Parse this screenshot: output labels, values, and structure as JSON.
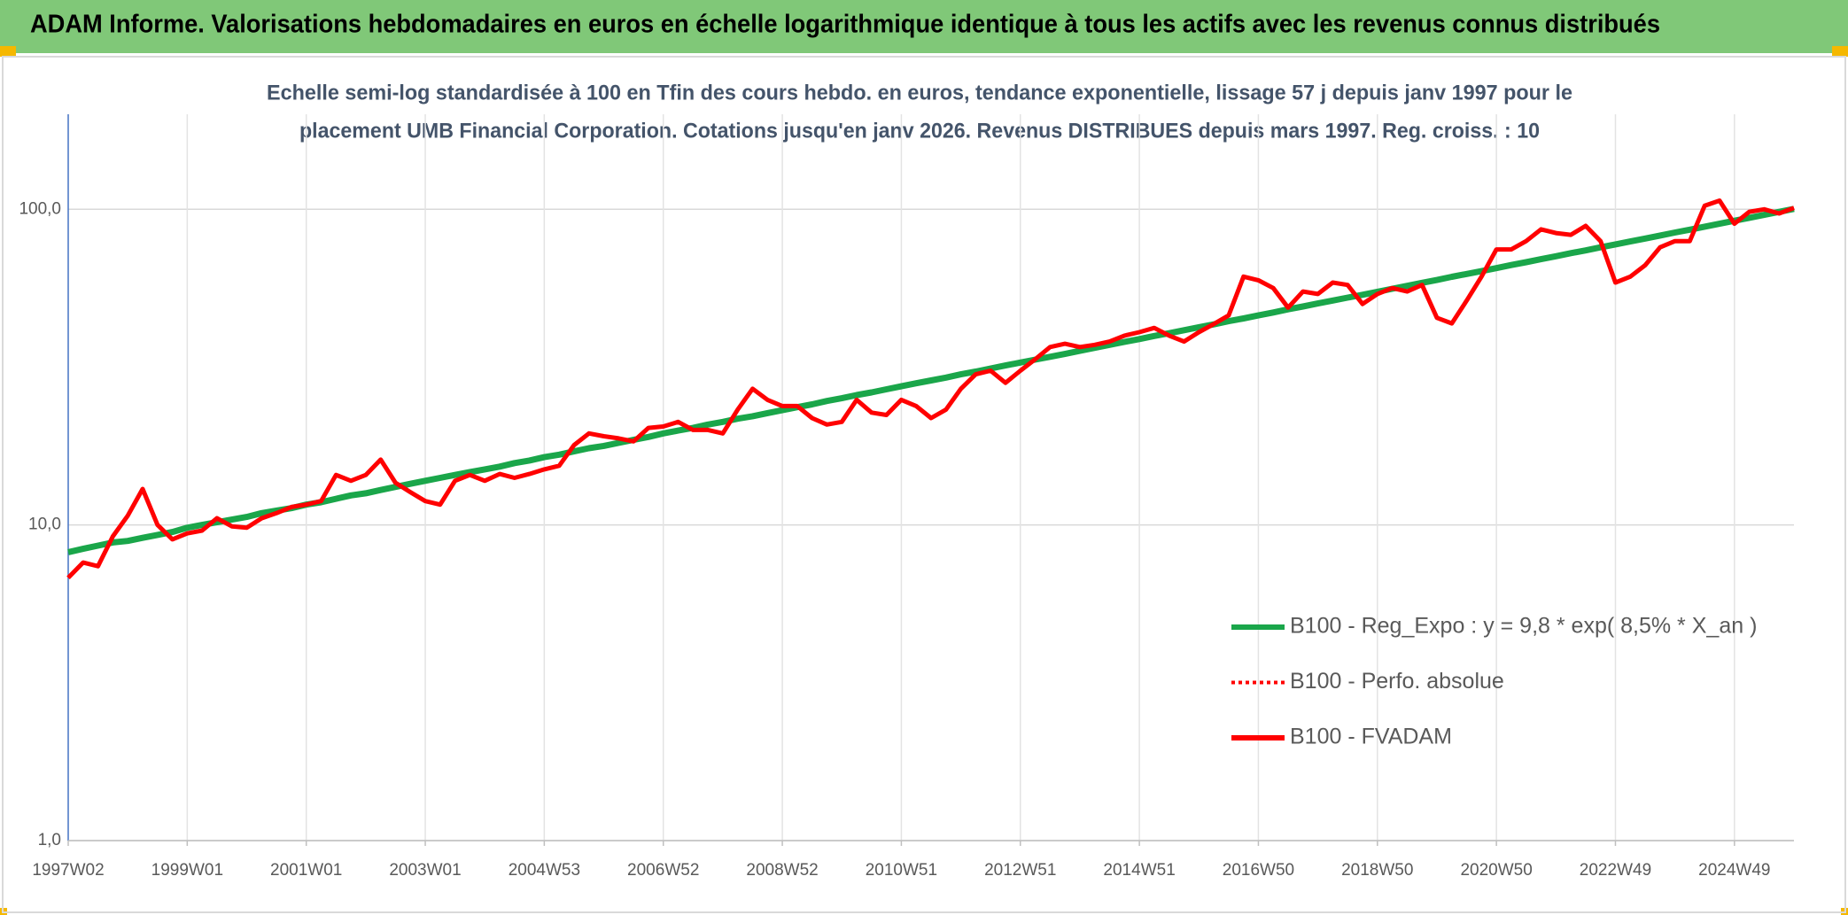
{
  "chart_data": {
    "type": "line",
    "header": "ADAM Informe. Valorisations hebdomadaires en euros en échelle logarithmique identique à tous les actifs avec les revenus connus distribués",
    "title": [
      "Echelle semi-log standardisée à 100 en Tfin des cours hebdo. en euros, tendance exponentielle, lissage 57 j depuis janv 1997 pour le",
      "placement UMB Financial Corporation. Cotations jusqu'en janv 2026. Revenus DISTRIBUES depuis mars 1997. Reg. croiss. : 10"
    ],
    "categories": [
      "1997W02",
      null,
      null,
      null,
      null,
      null,
      null,
      null,
      "1999W01",
      null,
      null,
      null,
      null,
      null,
      null,
      null,
      "2001W01",
      null,
      null,
      null,
      null,
      null,
      null,
      null,
      "2003W01",
      null,
      null,
      null,
      null,
      null,
      null,
      null,
      "2004W53",
      null,
      null,
      null,
      null,
      null,
      null,
      null,
      "2006W52",
      null,
      null,
      null,
      null,
      null,
      null,
      null,
      "2008W52",
      null,
      null,
      null,
      null,
      null,
      null,
      null,
      "2010W51",
      null,
      null,
      null,
      null,
      null,
      null,
      null,
      "2012W51",
      null,
      null,
      null,
      null,
      null,
      null,
      null,
      "2014W51",
      null,
      null,
      null,
      null,
      null,
      null,
      null,
      "2016W50",
      null,
      null,
      null,
      null,
      null,
      null,
      null,
      "2018W50",
      null,
      null,
      null,
      null,
      null,
      null,
      null,
      "2020W50",
      null,
      null,
      null,
      null,
      null,
      null,
      null,
      "2022W49",
      null,
      null,
      null,
      null,
      null,
      null,
      null,
      "2024W49",
      null,
      null,
      null,
      null
    ],
    "series": [
      {
        "name": "B100 - Reg_Expo : y = 9,8 * exp( 8,5% *  X_an )",
        "color": "#1aa64a",
        "style": "solid",
        "values": [
          8.2,
          8.4,
          8.6,
          8.8,
          8.9,
          9.1,
          9.3,
          9.5,
          9.8,
          10.0,
          10.2,
          10.4,
          10.6,
          10.9,
          11.1,
          11.3,
          11.6,
          11.8,
          12.1,
          12.4,
          12.6,
          12.9,
          13.2,
          13.5,
          13.8,
          14.1,
          14.4,
          14.7,
          15.0,
          15.3,
          15.7,
          16.0,
          16.4,
          16.7,
          17.1,
          17.5,
          17.8,
          18.2,
          18.6,
          19.0,
          19.5,
          19.9,
          20.3,
          20.8,
          21.2,
          21.7,
          22.1,
          22.6,
          23.1,
          23.6,
          24.1,
          24.7,
          25.2,
          25.8,
          26.3,
          26.9,
          27.5,
          28.1,
          28.7,
          29.3,
          30.0,
          30.6,
          31.3,
          32.0,
          32.7,
          33.4,
          34.1,
          34.8,
          35.6,
          36.4,
          37.2,
          38.0,
          38.8,
          39.7,
          40.5,
          41.4,
          42.3,
          43.2,
          44.2,
          45.1,
          46.1,
          47.1,
          48.2,
          49.2,
          50.3,
          51.4,
          52.5,
          53.6,
          54.8,
          56.0,
          57.2,
          58.5,
          59.7,
          61.1,
          62.4,
          63.7,
          65.1,
          66.6,
          68.0,
          69.5,
          71.0,
          72.6,
          74.1,
          75.8,
          77.4,
          79.1,
          80.8,
          82.6,
          84.4,
          86.2,
          88.1,
          90.0,
          92.0,
          94.0,
          96.0,
          98.1,
          100.3
        ]
      },
      {
        "name": "B100 - Perfo. absolue",
        "color": "#ff0000",
        "style": "dotted",
        "values": [
          6.8,
          7.6,
          7.4,
          9.2,
          10.7,
          13.0,
          10.0,
          9.0,
          9.4,
          9.6,
          10.5,
          9.9,
          9.8,
          10.5,
          10.9,
          11.4,
          11.6,
          11.9,
          14.4,
          13.8,
          14.4,
          16.1,
          13.6,
          12.7,
          11.9,
          11.6,
          13.8,
          14.4,
          13.8,
          14.5,
          14.1,
          14.5,
          15.0,
          15.4,
          17.9,
          19.5,
          19.1,
          18.8,
          18.4,
          20.3,
          20.5,
          21.2,
          20.0,
          20.0,
          19.5,
          23.2,
          27.0,
          24.9,
          23.8,
          23.8,
          21.8,
          20.8,
          21.2,
          24.9,
          22.7,
          22.3,
          24.9,
          23.8,
          21.8,
          23.2,
          27.0,
          30.0,
          30.8,
          28.2,
          30.8,
          33.5,
          36.6,
          37.5,
          36.6,
          37.2,
          38.1,
          39.8,
          40.8,
          42.1,
          39.8,
          38.1,
          40.8,
          43.3,
          46.1,
          61.2,
          59.6,
          56.3,
          48.8,
          54.9,
          53.9,
          58.6,
          57.6,
          50.1,
          53.9,
          56.3,
          54.9,
          57.6,
          45.3,
          43.5,
          51.4,
          61.2,
          74.6,
          74.6,
          79.3,
          86.4,
          84.1,
          83.0,
          88.6,
          79.3,
          58.6,
          61.2,
          66.5,
          75.8,
          79.3,
          79.3,
          102.6,
          106.5,
          90.0,
          98.2,
          100.0,
          97.0,
          101.0
        ]
      },
      {
        "name": "B100 - FVADAM",
        "color": "#ff0000",
        "style": "solid",
        "values": [
          6.8,
          7.6,
          7.4,
          9.2,
          10.7,
          13.0,
          10.0,
          9.0,
          9.4,
          9.6,
          10.5,
          9.9,
          9.8,
          10.5,
          10.9,
          11.4,
          11.6,
          11.9,
          14.4,
          13.8,
          14.4,
          16.1,
          13.6,
          12.7,
          11.9,
          11.6,
          13.8,
          14.4,
          13.8,
          14.5,
          14.1,
          14.5,
          15.0,
          15.4,
          17.9,
          19.5,
          19.1,
          18.8,
          18.4,
          20.3,
          20.5,
          21.2,
          20.0,
          20.0,
          19.5,
          23.2,
          27.0,
          24.9,
          23.8,
          23.8,
          21.8,
          20.8,
          21.2,
          24.9,
          22.7,
          22.3,
          24.9,
          23.8,
          21.8,
          23.2,
          27.0,
          30.0,
          30.8,
          28.2,
          30.8,
          33.5,
          36.6,
          37.5,
          36.6,
          37.2,
          38.1,
          39.8,
          40.8,
          42.1,
          39.8,
          38.1,
          40.8,
          43.3,
          46.1,
          61.2,
          59.6,
          56.3,
          48.8,
          54.9,
          53.9,
          58.6,
          57.6,
          50.1,
          53.9,
          56.3,
          54.9,
          57.6,
          45.3,
          43.5,
          51.4,
          61.2,
          74.6,
          74.6,
          79.3,
          86.4,
          84.1,
          83.0,
          88.6,
          79.3,
          58.6,
          61.2,
          66.5,
          75.8,
          79.3,
          79.3,
          102.6,
          106.5,
          90.0,
          98.2,
          100.0,
          97.0,
          101.0
        ]
      }
    ],
    "ylim": [
      1,
      200
    ],
    "log_y": true,
    "yticks": [
      {
        "value": 1,
        "label": "1,0"
      },
      {
        "value": 10,
        "label": "10,0"
      },
      {
        "value": 100,
        "label": "100,0"
      }
    ],
    "grid": true
  }
}
